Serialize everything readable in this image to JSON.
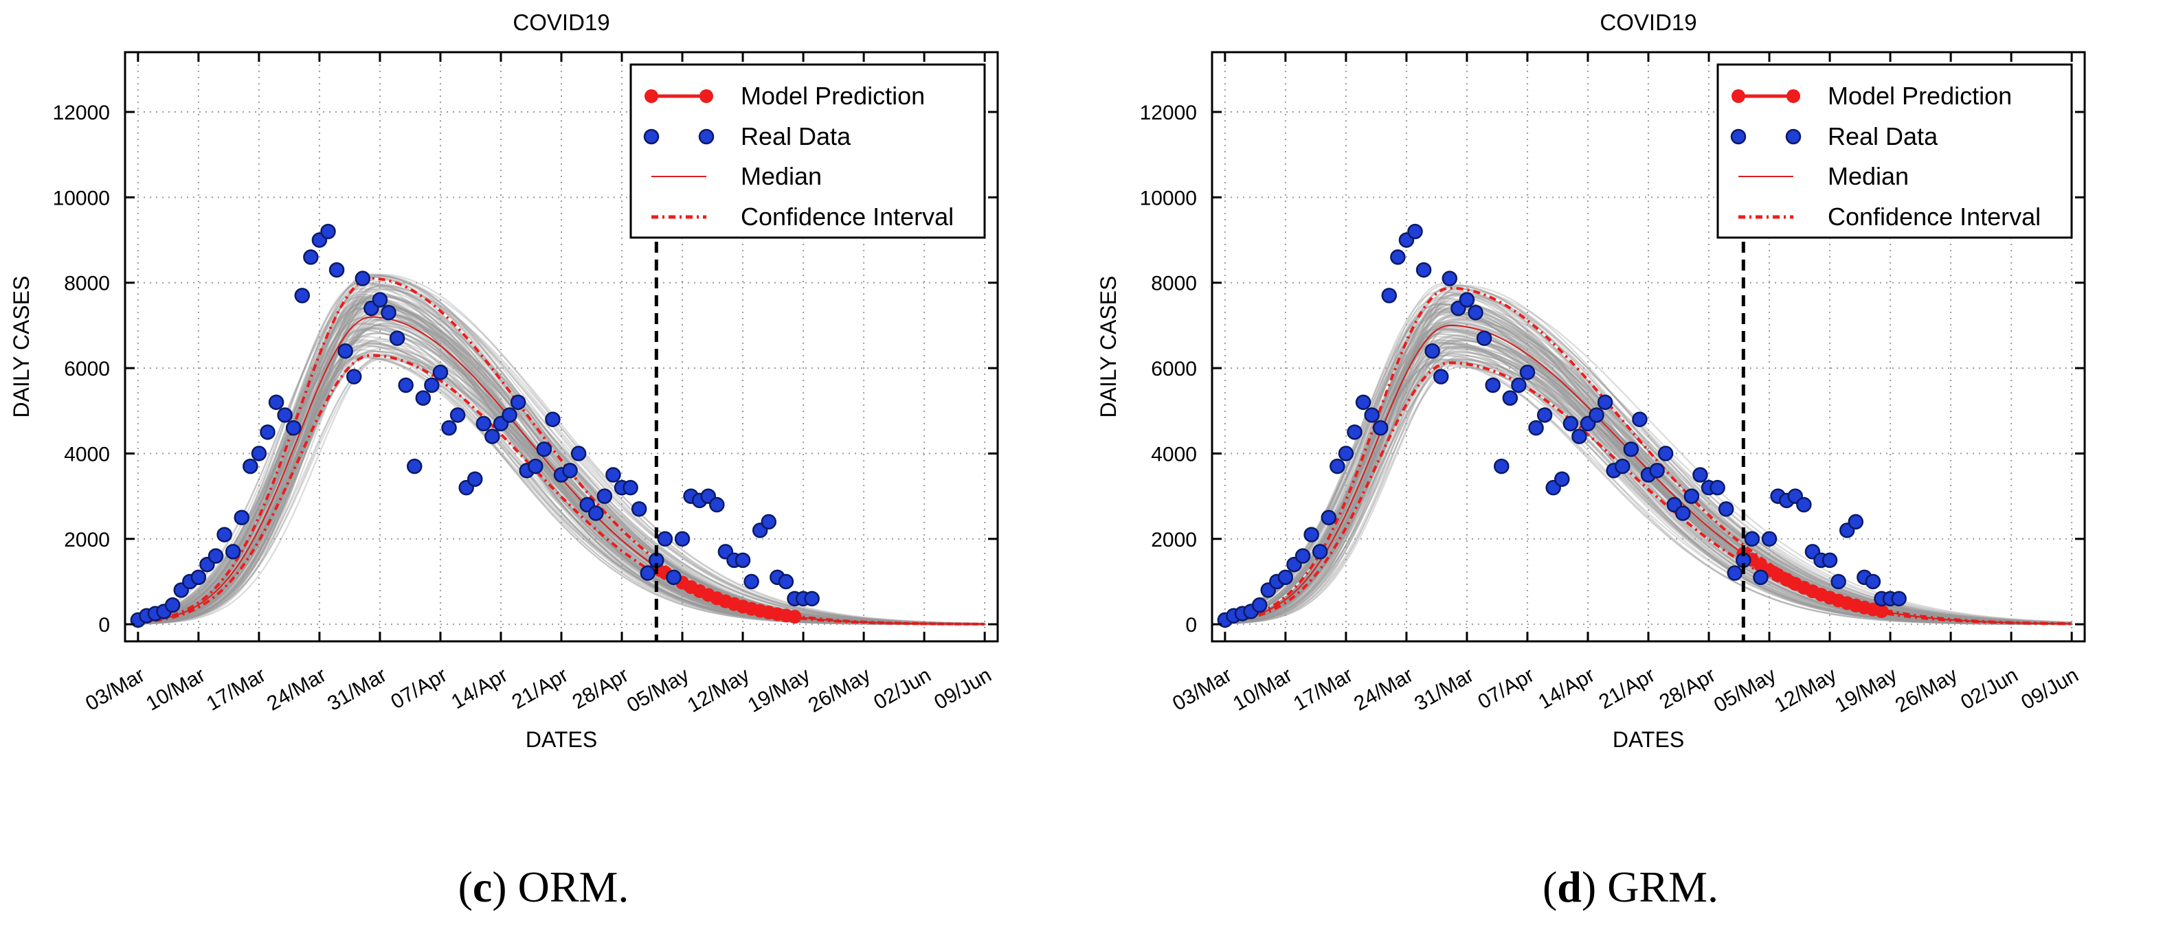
{
  "chart_data": [
    {
      "type": "line",
      "panel": "c",
      "title": "COVID19",
      "xlabel": "DATES",
      "ylabel": "DAILY CASES",
      "ylim": [
        -400,
        13400
      ],
      "yticks": [
        0,
        2000,
        4000,
        6000,
        8000,
        10000,
        12000
      ],
      "xlim": [
        -1.5,
        99.5
      ],
      "xticks": [
        0,
        7,
        14,
        21,
        28,
        35,
        42,
        49,
        56,
        63,
        70,
        77,
        84,
        91,
        98
      ],
      "xtick_labels": [
        "03/Mar",
        "10/Mar",
        "17/Mar",
        "24/Mar",
        "31/Mar",
        "07/Apr",
        "14/Apr",
        "21/Apr",
        "28/Apr",
        "05/May",
        "12/May",
        "19/May",
        "26/May",
        "02/Jun",
        "09/Jun"
      ],
      "grid": true,
      "cutoff_day": 60,
      "legend": {
        "position": "top-right",
        "entries": [
          "Model Prediction",
          "Real Data",
          "Median",
          "Confidence Interval"
        ]
      },
      "model": {
        "peak": 7200,
        "peak_day": 27,
        "rise_width": 8.5,
        "decay_width": 18
      },
      "real_data": {
        "x": [
          0,
          1,
          2,
          3,
          4,
          5,
          6,
          7,
          8,
          9,
          10,
          11,
          12,
          13,
          14,
          15,
          16,
          17,
          18,
          19,
          20,
          21,
          22,
          23,
          24,
          25,
          26,
          27,
          28,
          29,
          30,
          31,
          32,
          33,
          34,
          35,
          36,
          37,
          38,
          39,
          40,
          41,
          42,
          43,
          44,
          45,
          46,
          47,
          48,
          49,
          50,
          51,
          52,
          53,
          54,
          55,
          56,
          57,
          58,
          59,
          60,
          61,
          62,
          63,
          64,
          65,
          66,
          67,
          68,
          69,
          70,
          71,
          72,
          73,
          74,
          75,
          76,
          77,
          78
        ],
        "y": [
          100,
          200,
          250,
          300,
          450,
          800,
          1000,
          1100,
          1400,
          1600,
          2100,
          1700,
          2500,
          3700,
          4000,
          4500,
          5200,
          4900,
          4600,
          7700,
          8600,
          9000,
          9200,
          8300,
          6400,
          5800,
          8100,
          7400,
          7600,
          7300,
          6700,
          5600,
          3700,
          5300,
          5600,
          5900,
          4600,
          4900,
          3200,
          3400,
          4700,
          4400,
          4700,
          4900,
          5200,
          3600,
          3700,
          4100,
          4800,
          3500,
          3600,
          4000,
          2800,
          2600,
          3000,
          3500,
          3200,
          3200,
          2700,
          1200,
          1500,
          2000,
          1100,
          2000,
          3000,
          2900,
          3000,
          2800,
          1700,
          1500,
          1500,
          1000,
          2200,
          2400,
          1100,
          1000,
          600,
          600,
          600
        ]
      }
    },
    {
      "type": "line",
      "panel": "d",
      "title": "COVID19",
      "xlabel": "DATES",
      "ylabel": "DAILY CASES",
      "ylim": [
        -400,
        13400
      ],
      "yticks": [
        0,
        2000,
        4000,
        6000,
        8000,
        10000,
        12000
      ],
      "xlim": [
        -1.5,
        99.5
      ],
      "xticks": [
        0,
        7,
        14,
        21,
        28,
        35,
        42,
        49,
        56,
        63,
        70,
        77,
        84,
        91,
        98
      ],
      "xtick_labels": [
        "03/Mar",
        "10/Mar",
        "17/Mar",
        "24/Mar",
        "31/Mar",
        "07/Apr",
        "14/Apr",
        "21/Apr",
        "28/Apr",
        "05/May",
        "12/May",
        "19/May",
        "26/May",
        "02/Jun",
        "09/Jun"
      ],
      "grid": true,
      "cutoff_day": 60,
      "legend": {
        "position": "top-right",
        "entries": [
          "Model Prediction",
          "Real Data",
          "Median",
          "Confidence Interval"
        ]
      },
      "model": {
        "peak": 7000,
        "peak_day": 26,
        "rise_width": 8.5,
        "decay_width": 20
      },
      "real_data": {
        "x": [
          0,
          1,
          2,
          3,
          4,
          5,
          6,
          7,
          8,
          9,
          10,
          11,
          12,
          13,
          14,
          15,
          16,
          17,
          18,
          19,
          20,
          21,
          22,
          23,
          24,
          25,
          26,
          27,
          28,
          29,
          30,
          31,
          32,
          33,
          34,
          35,
          36,
          37,
          38,
          39,
          40,
          41,
          42,
          43,
          44,
          45,
          46,
          47,
          48,
          49,
          50,
          51,
          52,
          53,
          54,
          55,
          56,
          57,
          58,
          59,
          60,
          61,
          62,
          63,
          64,
          65,
          66,
          67,
          68,
          69,
          70,
          71,
          72,
          73,
          74,
          75,
          76,
          77,
          78
        ],
        "y": [
          100,
          200,
          250,
          300,
          450,
          800,
          1000,
          1100,
          1400,
          1600,
          2100,
          1700,
          2500,
          3700,
          4000,
          4500,
          5200,
          4900,
          4600,
          7700,
          8600,
          9000,
          9200,
          8300,
          6400,
          5800,
          8100,
          7400,
          7600,
          7300,
          6700,
          5600,
          3700,
          5300,
          5600,
          5900,
          4600,
          4900,
          3200,
          3400,
          4700,
          4400,
          4700,
          4900,
          5200,
          3600,
          3700,
          4100,
          4800,
          3500,
          3600,
          4000,
          2800,
          2600,
          3000,
          3500,
          3200,
          3200,
          2700,
          1200,
          1500,
          2000,
          1100,
          2000,
          3000,
          2900,
          3000,
          2800,
          1700,
          1500,
          1500,
          1000,
          2200,
          2400,
          1100,
          1000,
          600,
          600,
          600
        ]
      }
    }
  ],
  "captions": [
    {
      "letter": "c",
      "paren_open": "(",
      "paren_close": ")",
      "text": " ORM."
    },
    {
      "letter": "d",
      "paren_open": "(",
      "paren_close": ")",
      "text": " GRM."
    }
  ],
  "colors": {
    "real_data_fill": "#1f3fd6",
    "real_data_edge": "#0a1a66",
    "prediction": "#ee1c1c",
    "median": "#d42020",
    "ensemble": "#999999",
    "grid": "#9a9a9a"
  }
}
